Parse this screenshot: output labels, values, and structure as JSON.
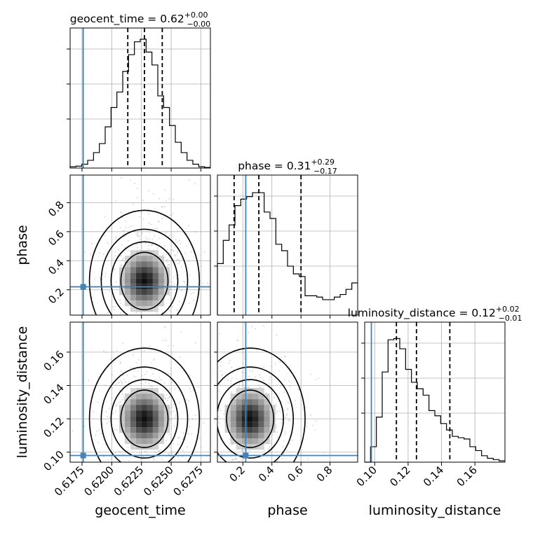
{
  "chart_data": {
    "type": "corner",
    "parameters": [
      "geocent_time",
      "phase",
      "luminosity_distance"
    ],
    "titles": [
      {
        "param": "geocent_time",
        "text": "geocent_time = 0.62",
        "sup": "+0.00",
        "sub": "−0.00"
      },
      {
        "param": "phase",
        "text": "phase = 0.31",
        "sup": "+0.29",
        "sub": "−0.17"
      },
      {
        "param": "luminosity_distance",
        "text": "luminosity_distance = 0.12",
        "sup": "+0.02",
        "sub": "−0.01"
      }
    ],
    "ranges": {
      "geocent_time": [
        0.6165,
        0.6283
      ],
      "phase": [
        0.025,
        0.99
      ],
      "luminosity_distance": [
        0.094,
        0.178
      ]
    },
    "ticks": {
      "geocent_time": {
        "values": [
          0.6175,
          0.62,
          0.6225,
          0.625,
          0.6275
        ],
        "labels": [
          "0.6175",
          "0.6200",
          "0.6225",
          "0.6250",
          "0.6275"
        ]
      },
      "phase": {
        "values": [
          0.2,
          0.4,
          0.6,
          0.8
        ],
        "labels": [
          "0.2",
          "0.4",
          "0.6",
          "0.8"
        ]
      },
      "luminosity_distance": {
        "values": [
          0.1,
          0.12,
          0.14,
          0.16
        ],
        "labels": [
          "0.10",
          "0.12",
          "0.14",
          "0.16"
        ]
      }
    },
    "injection": {
      "geocent_time": 0.6176,
      "phase": 0.22,
      "luminosity_distance": 0.098
    },
    "quantiles": {
      "geocent_time": [
        0.62135,
        0.62275,
        0.62425
      ],
      "phase": [
        0.14,
        0.31,
        0.6
      ],
      "luminosity_distance": [
        0.113,
        0.125,
        0.145
      ]
    },
    "histograms": {
      "geocent_time": [
        0.01,
        0.015,
        0.03,
        0.06,
        0.12,
        0.19,
        0.32,
        0.47,
        0.59,
        0.75,
        0.88,
        0.98,
        1.0,
        0.9,
        0.8,
        0.56,
        0.47,
        0.33,
        0.2,
        0.12,
        0.06,
        0.03,
        0.01,
        0.005
      ],
      "phase": [
        0.4,
        0.58,
        0.7,
        0.85,
        0.9,
        0.92,
        0.95,
        0.95,
        0.8,
        0.75,
        0.55,
        0.5,
        0.38,
        0.32,
        0.3,
        0.15,
        0.15,
        0.14,
        0.12,
        0.12,
        0.14,
        0.16,
        0.2,
        0.25
      ],
      "luminosity_distance": [
        0.0,
        0.12,
        0.35,
        0.7,
        0.95,
        0.96,
        0.88,
        0.72,
        0.62,
        0.57,
        0.52,
        0.4,
        0.36,
        0.3,
        0.25,
        0.2,
        0.19,
        0.18,
        0.12,
        0.09,
        0.05,
        0.03,
        0.02,
        0.01
      ]
    },
    "contour_centers": {
      "geocent_time_phase": [
        0.62275,
        0.26
      ],
      "geocent_time_luminosity_distance": [
        0.62275,
        0.12
      ],
      "phase_luminosity_distance": [
        0.25,
        0.12
      ]
    },
    "axis_labels": {
      "geocent_time": "geocent_time",
      "phase": "phase",
      "luminosity_distance": "luminosity_distance"
    },
    "grid": true,
    "colors": {
      "truth": "#4682b4",
      "line": "#000000",
      "grid": "#b0b0b0",
      "scatter": "#9a9a9a"
    }
  }
}
